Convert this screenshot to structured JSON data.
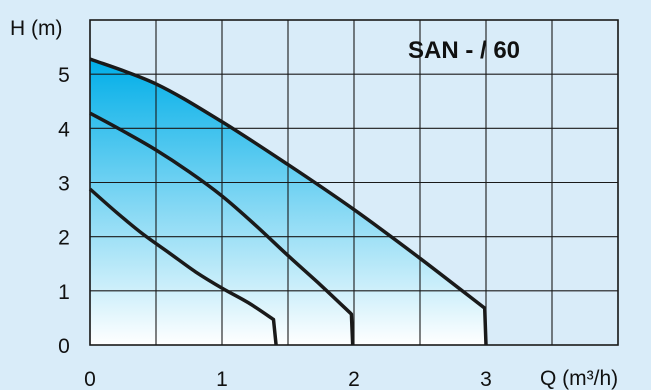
{
  "chart_data": {
    "type": "line",
    "title": "SAN - / 60",
    "xlabel": "Q (m³/h)",
    "ylabel": "H (m)",
    "xlim": [
      0,
      4
    ],
    "ylim": [
      0,
      6
    ],
    "x_ticks": [
      "0",
      "1",
      "2",
      "3"
    ],
    "y_ticks": [
      "0",
      "1",
      "2",
      "3",
      "4",
      "5"
    ],
    "grid": true,
    "legend": "none",
    "colors": {
      "background": "#d9ecf9",
      "fill_top": "#00aee8",
      "fill_bottom": "#ffffff",
      "curve": "#1a1a1a",
      "grid": "#1a1a1a"
    },
    "series": [
      {
        "points": [
          [
            0,
            2.88
          ],
          [
            0.2,
            2.45
          ],
          [
            0.4,
            2.05
          ],
          [
            0.6,
            1.7
          ],
          [
            0.8,
            1.35
          ],
          [
            1.0,
            1.05
          ],
          [
            1.2,
            0.78
          ],
          [
            1.39,
            0.47
          ],
          [
            1.41,
            0
          ]
        ]
      },
      {
        "points": [
          [
            0,
            4.28
          ],
          [
            0.25,
            3.95
          ],
          [
            0.5,
            3.6
          ],
          [
            0.75,
            3.2
          ],
          [
            1.0,
            2.75
          ],
          [
            1.25,
            2.22
          ],
          [
            1.5,
            1.65
          ],
          [
            1.75,
            1.1
          ],
          [
            1.98,
            0.57
          ],
          [
            1.99,
            0
          ]
        ]
      },
      {
        "points": [
          [
            0,
            5.28
          ],
          [
            0.5,
            4.82
          ],
          [
            1.0,
            4.12
          ],
          [
            1.5,
            3.33
          ],
          [
            2.0,
            2.5
          ],
          [
            2.5,
            1.6
          ],
          [
            2.99,
            0.68
          ],
          [
            3.0,
            0
          ]
        ]
      }
    ]
  }
}
